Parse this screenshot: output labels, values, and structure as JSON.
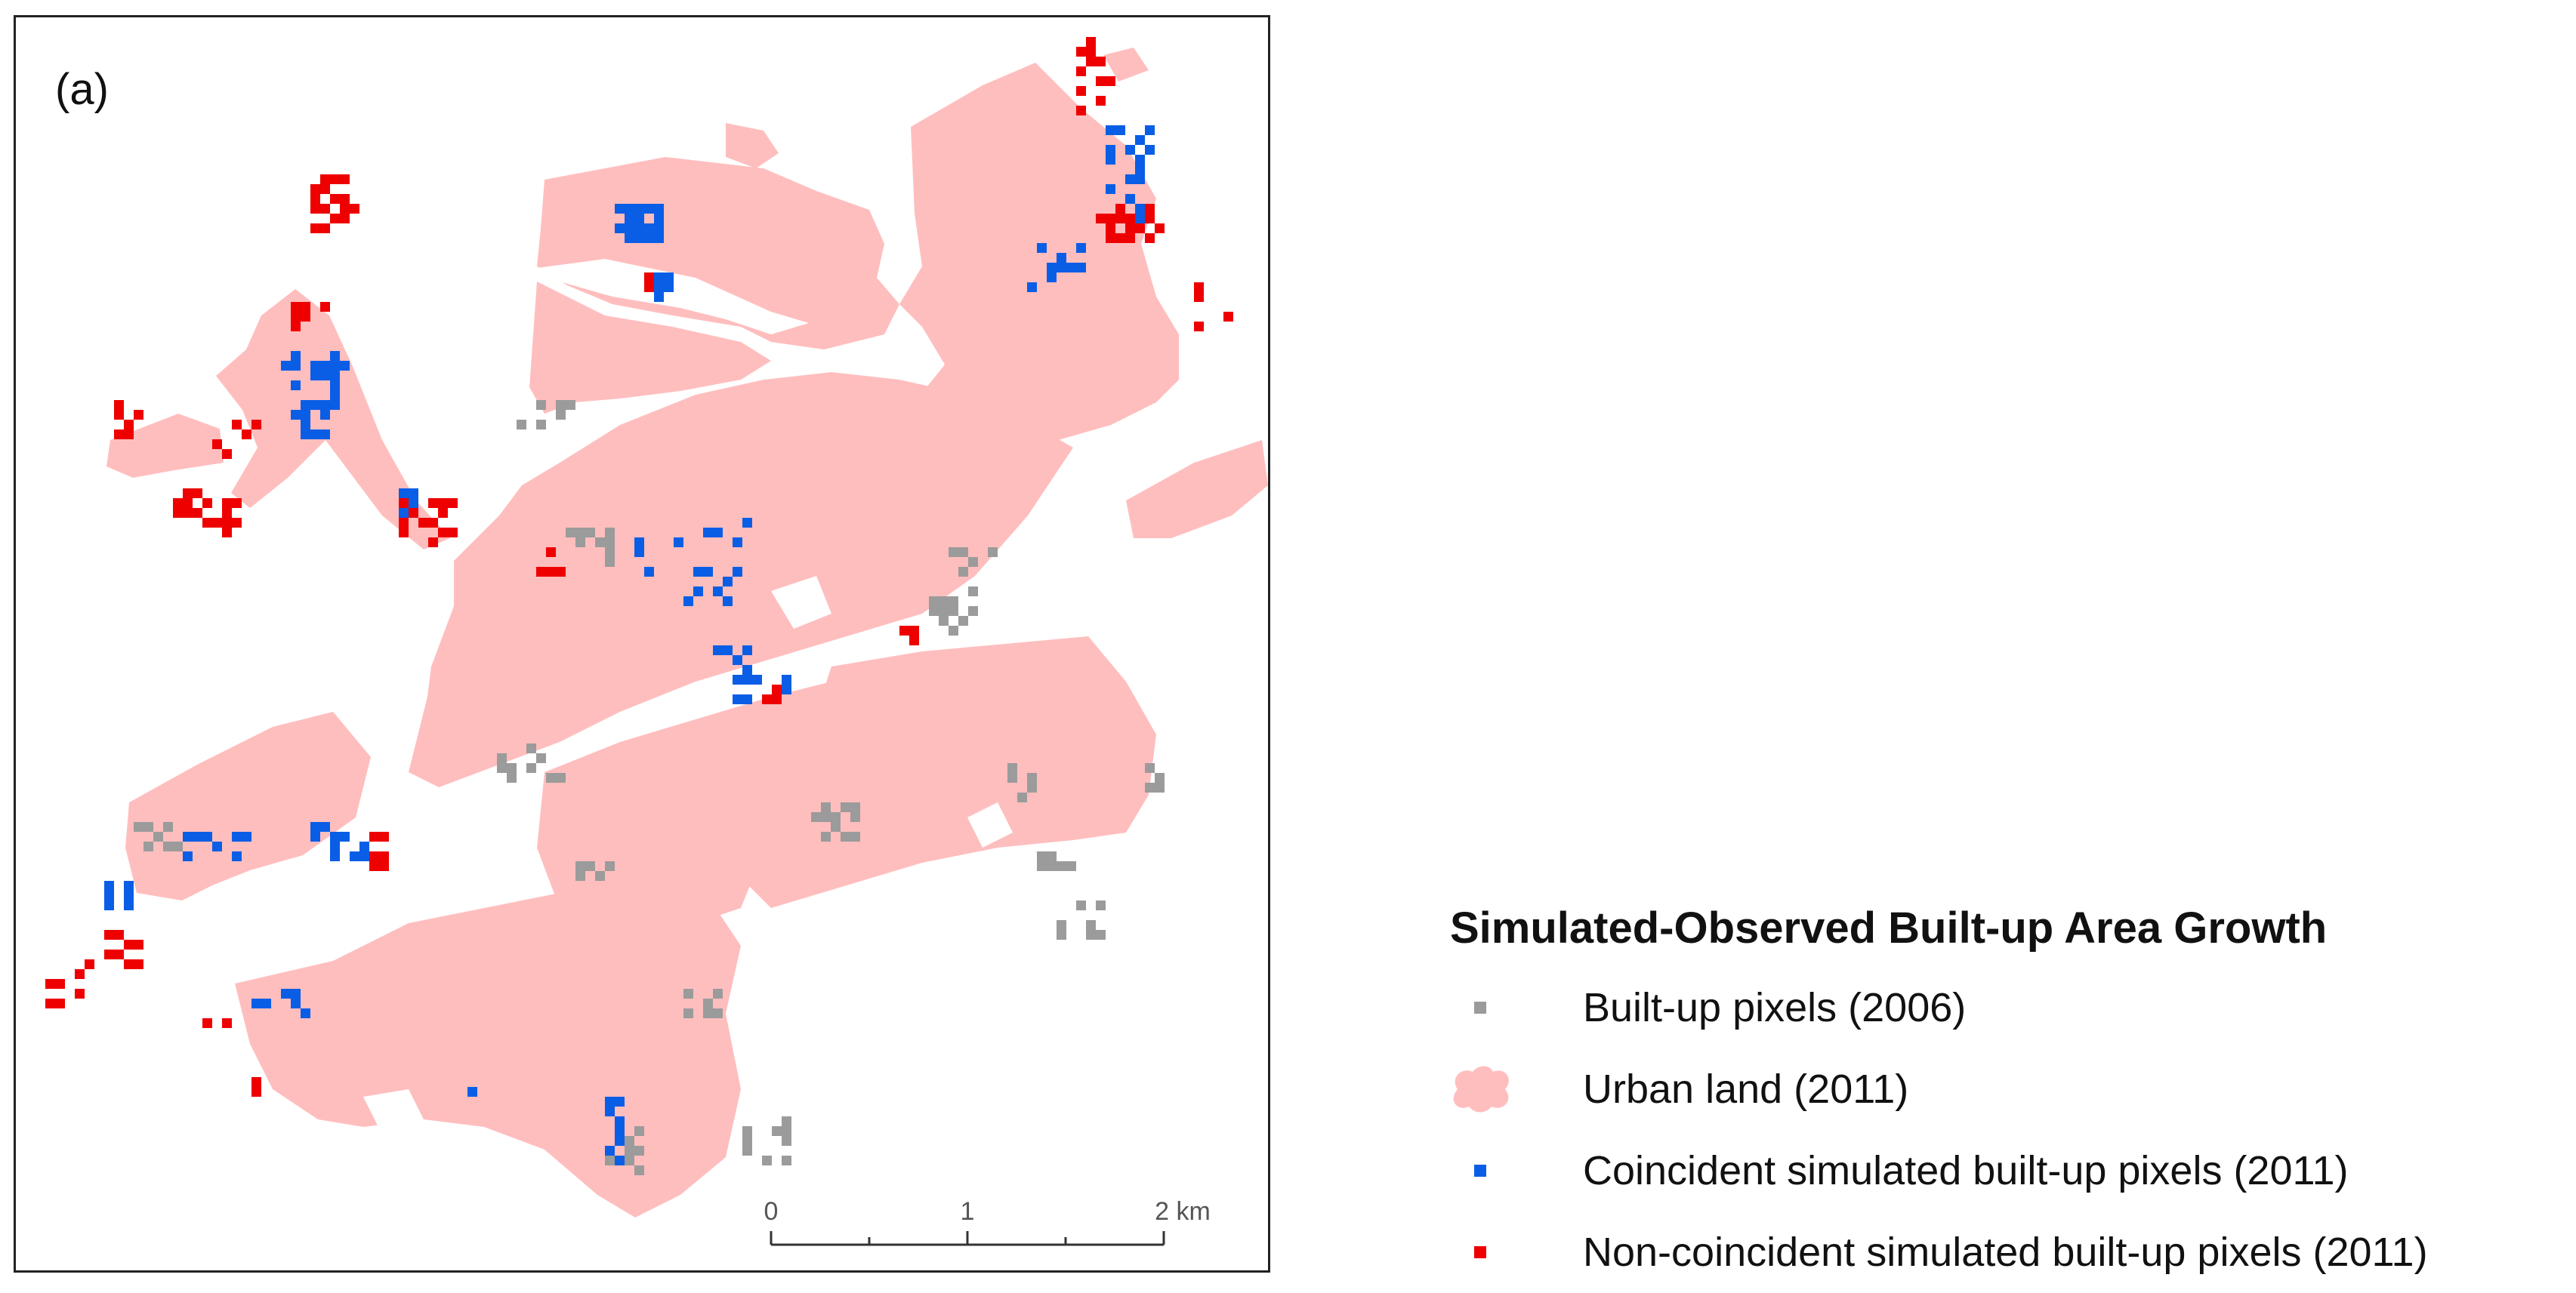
{
  "panel_label": "(a)",
  "legend": {
    "title": "Simulated-Observed Built-up Area Growth",
    "items": [
      {
        "label": "Built-up pixels (2006)",
        "symbol": "gray-square-icon",
        "color": "#9b9b9b"
      },
      {
        "label": "Urban land (2011)",
        "symbol": "pink-blob-icon",
        "color": "#ffbebe"
      },
      {
        "label": "Coincident simulated built-up pixels (2011)",
        "symbol": "blue-square-icon",
        "color": "#0a5ee6"
      },
      {
        "label": "Non-coincident simulated built-up pixels (2011)",
        "symbol": "red-square-icon",
        "color": "#ee0000"
      }
    ]
  },
  "scale_bar": {
    "ticks": [
      "0",
      "1",
      "2 km"
    ],
    "unit": "km"
  },
  "colors": {
    "urban_land": "#ffbebe",
    "builtup_2006": "#9b9b9b",
    "coincident": "#0a5ee6",
    "non_coincident": "#ee0000",
    "frame": "#222222"
  }
}
